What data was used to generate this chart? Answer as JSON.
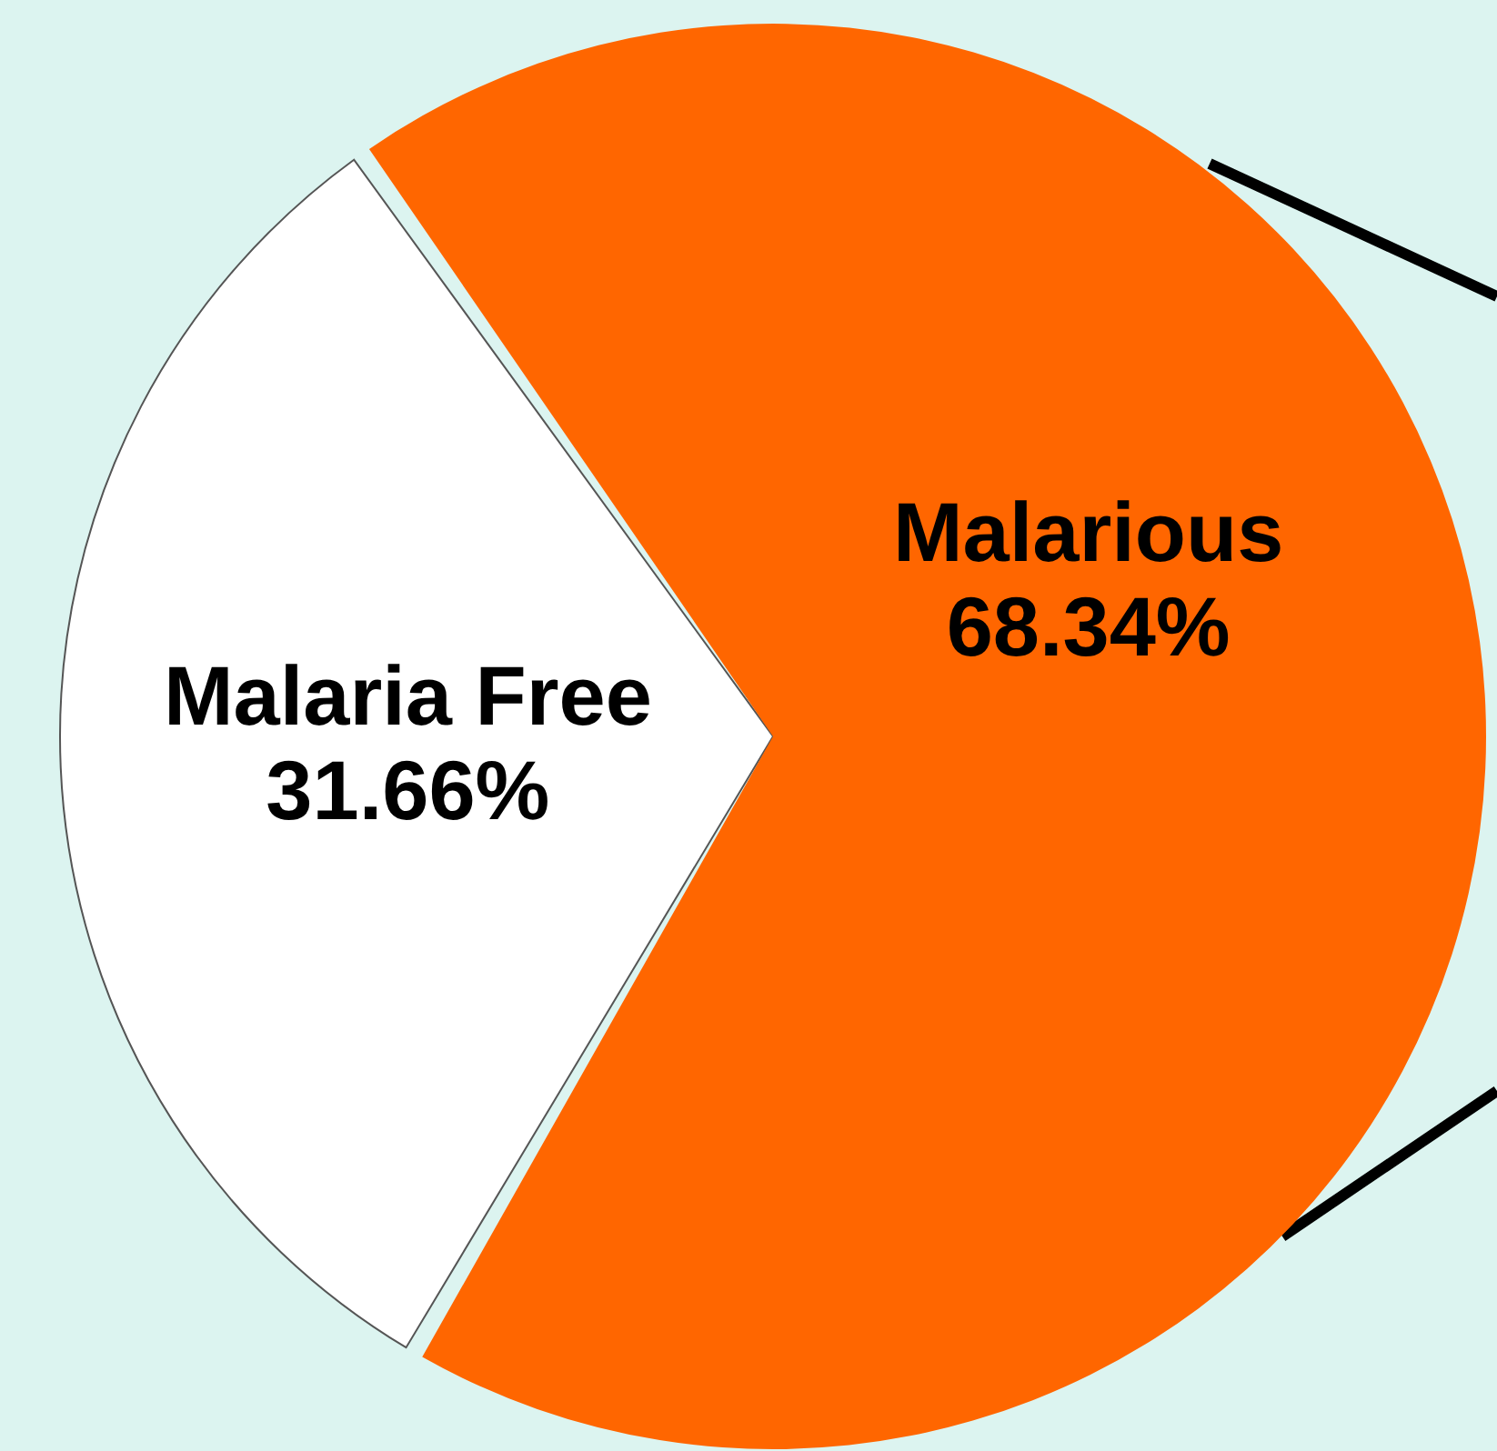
{
  "chart_data": {
    "type": "pie",
    "categories": [
      "Malaria Free",
      "Malarious"
    ],
    "values": [
      31.66,
      68.34
    ],
    "colors": [
      "#ffffff",
      "#ff6600"
    ],
    "value_labels": [
      "31.66%",
      "68.34%"
    ]
  }
}
